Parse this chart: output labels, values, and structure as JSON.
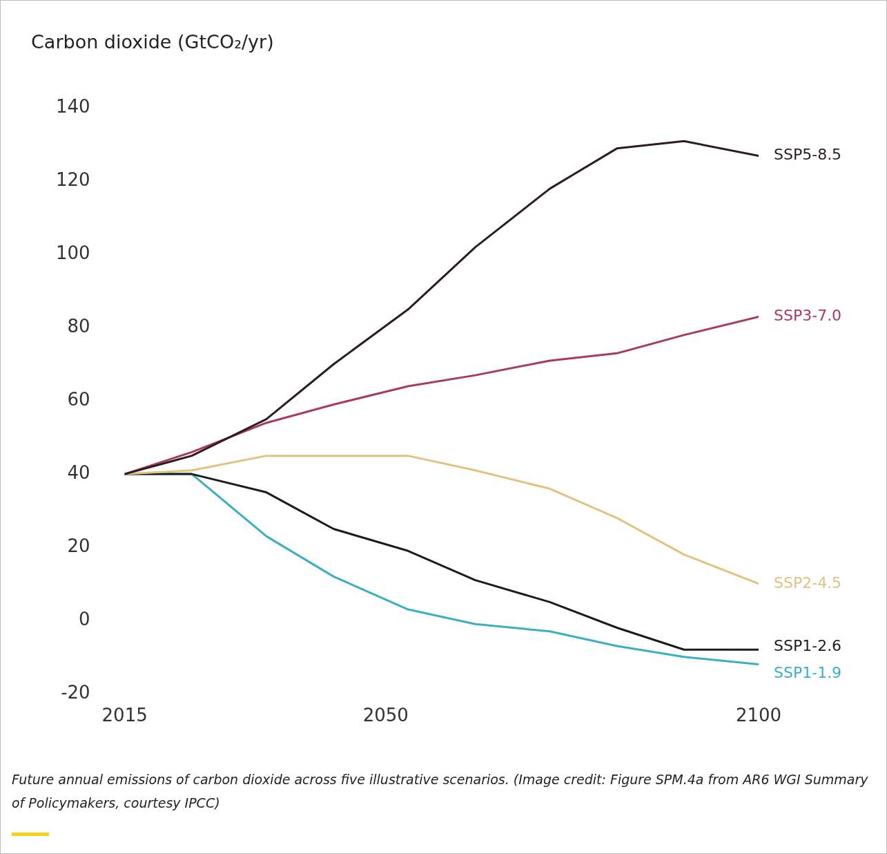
{
  "chart_data": {
    "type": "line",
    "ylabel": "Carbon dioxide (GtCO₂/yr)",
    "annotations": [
      "Future annual emissions of carbon dioxide across five illustrative scenarios. (Image credit: Figure SPM.4a from AR6 WGI Summary of Policymakers, courtesy IPCC)"
    ],
    "x": [
      2015,
      2024,
      2034,
      2043,
      2053,
      2062,
      2072,
      2081,
      2090,
      2100
    ],
    "series": [
      {
        "name": "SSP5-8.5",
        "color": "#2b1b24",
        "values": [
          40,
          45,
          55,
          70,
          85,
          102,
          118,
          129,
          131,
          127
        ]
      },
      {
        "name": "SSP3-7.0",
        "color": "#a83a5e",
        "values": [
          40,
          46,
          54,
          59,
          64,
          67,
          71,
          73,
          78,
          83
        ]
      },
      {
        "name": "SSP2-4.5",
        "color": "#e2c27e",
        "values": [
          40,
          41,
          45,
          45,
          45,
          41,
          36,
          28,
          18,
          10
        ]
      },
      {
        "name": "SSP1-2.6",
        "color": "#1c1c1c",
        "values": [
          40,
          40,
          35,
          25,
          19,
          11,
          5,
          -2,
          -8,
          -8
        ]
      },
      {
        "name": "SSP1-1.9",
        "color": "#3aafc2",
        "values": [
          40,
          40,
          23,
          12,
          3,
          -1,
          -3,
          -7,
          -10,
          -12
        ]
      }
    ],
    "xlim": [
      2015,
      2100
    ],
    "xticks": [
      2015,
      2050,
      2100
    ],
    "ylim": [
      -20,
      140
    ],
    "yticks": [
      -20,
      0,
      20,
      40,
      60,
      80,
      100,
      120,
      140
    ],
    "grid": false,
    "legend": false
  }
}
